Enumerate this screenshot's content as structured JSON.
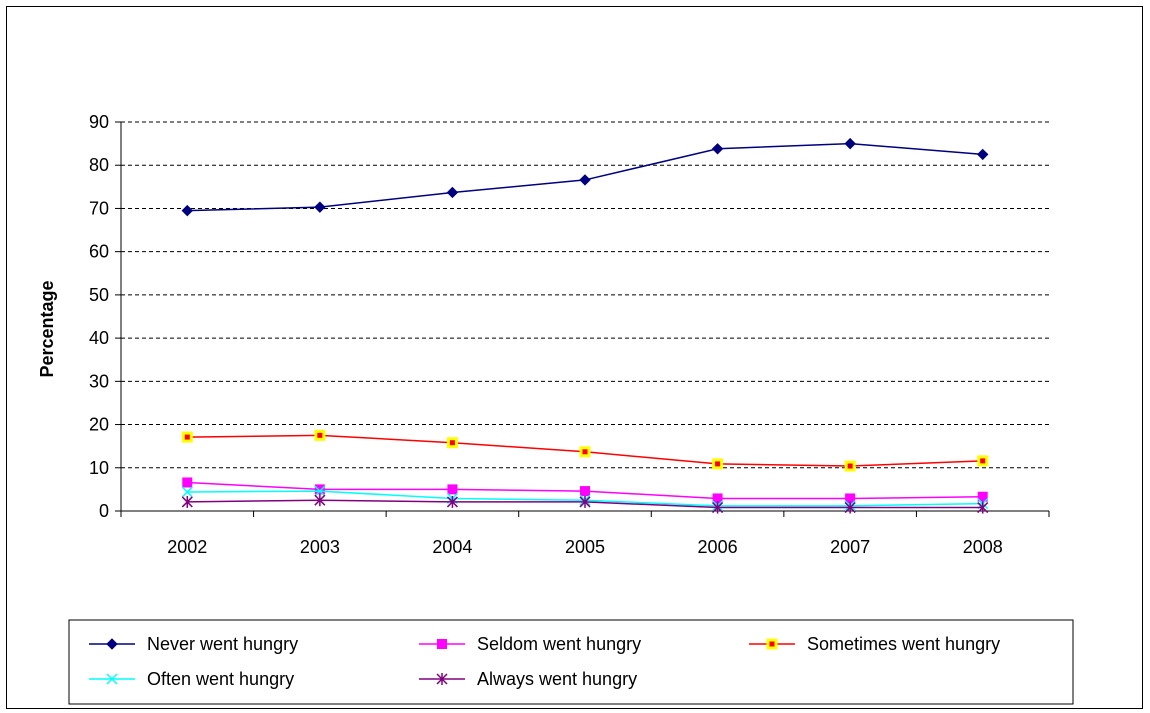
{
  "chart_data": {
    "type": "line",
    "title": "",
    "xlabel": "",
    "ylabel": "Percentage",
    "x": [
      "2002",
      "2003",
      "2004",
      "2005",
      "2006",
      "2007",
      "2008"
    ],
    "ylim": [
      0,
      90
    ],
    "yticks": [
      0,
      10,
      20,
      30,
      40,
      50,
      60,
      70,
      80,
      90
    ],
    "grid": "horizontal dashed",
    "legend_position": "bottom",
    "series": [
      {
        "name": "Never went hungry",
        "color": "#00007F",
        "marker": "diamond",
        "values": [
          69.5,
          70.3,
          73.7,
          76.6,
          83.8,
          85.0,
          82.5
        ]
      },
      {
        "name": "Seldom went hungry",
        "color": "#FF00FF",
        "marker": "square",
        "values": [
          6.6,
          5.0,
          5.0,
          4.6,
          2.9,
          2.9,
          3.3
        ]
      },
      {
        "name": "Sometimes went hungry",
        "color": "#FF0000",
        "marker": "square-yellow",
        "values": [
          17.1,
          17.5,
          15.8,
          13.7,
          10.9,
          10.4,
          11.6
        ]
      },
      {
        "name": "Often went hungry",
        "color": "#00FFFF",
        "marker": "x",
        "values": [
          4.4,
          4.6,
          2.9,
          2.5,
          1.2,
          1.2,
          1.7
        ]
      },
      {
        "name": "Always went hungry",
        "color": "#800080",
        "marker": "star",
        "values": [
          2.1,
          2.5,
          2.1,
          2.1,
          0.8,
          0.8,
          0.8
        ]
      }
    ]
  }
}
